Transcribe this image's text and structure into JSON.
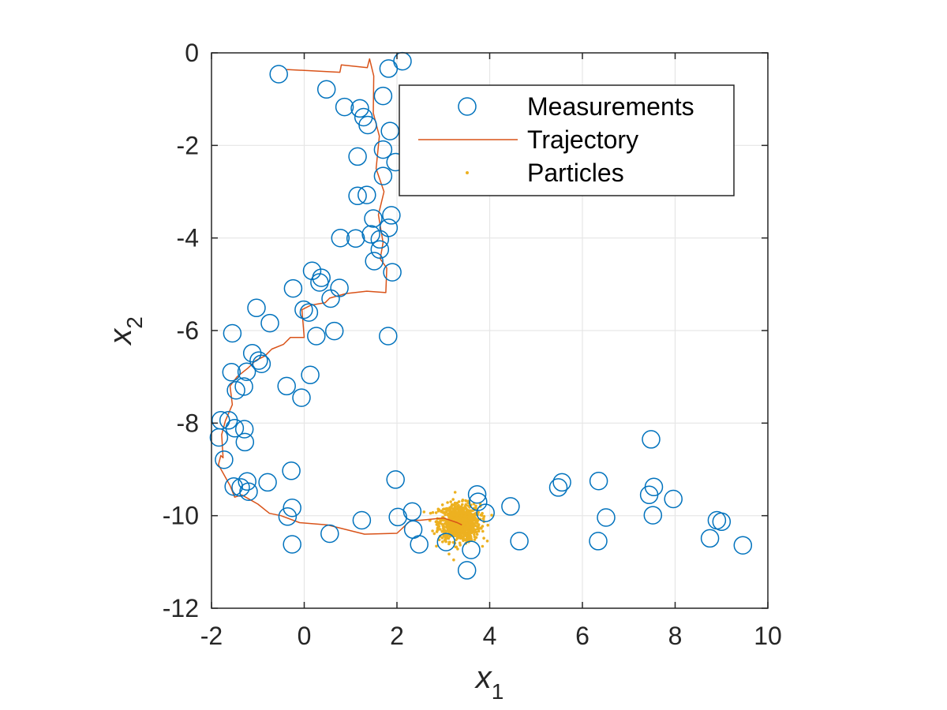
{
  "chart_data": {
    "type": "scatter",
    "xlabel": "x",
    "xlabel_sub": "1",
    "ylabel": "x",
    "ylabel_sub": "2",
    "xlim": [
      -2,
      10
    ],
    "ylim": [
      -12,
      0
    ],
    "xticks": [
      -2,
      0,
      2,
      4,
      6,
      8,
      10
    ],
    "yticks": [
      0,
      -2,
      -4,
      -6,
      -8,
      -10,
      -12
    ],
    "xtick_labels": [
      "-2",
      "0",
      "2",
      "4",
      "6",
      "8",
      "10"
    ],
    "ytick_labels": [
      "0",
      "-2",
      "-4",
      "-6",
      "-8",
      "-10",
      "-12"
    ],
    "grid": true,
    "legend_position": "top-right",
    "colors": {
      "measurements": "#0072BD",
      "trajectory": "#D95319",
      "particles": "#EDB120",
      "grid": "#E6E6E6",
      "axes": "#262626"
    },
    "series": [
      {
        "name": "Measurements",
        "type": "scatter",
        "marker": "circle",
        "points": [
          [
            -0.55,
            -0.46
          ],
          [
            0.48,
            -0.79
          ],
          [
            1.82,
            -0.34
          ],
          [
            2.12,
            -0.18
          ],
          [
            0.87,
            -1.17
          ],
          [
            1.2,
            -1.2
          ],
          [
            1.7,
            -0.93
          ],
          [
            1.28,
            -1.39
          ],
          [
            1.37,
            -1.56
          ],
          [
            1.85,
            -1.69
          ],
          [
            1.7,
            -2.09
          ],
          [
            1.15,
            -2.24
          ],
          [
            1.97,
            -2.36
          ],
          [
            1.7,
            -2.66
          ],
          [
            1.15,
            -3.09
          ],
          [
            1.35,
            -3.07
          ],
          [
            1.88,
            -3.51
          ],
          [
            1.49,
            -3.58
          ],
          [
            1.82,
            -3.78
          ],
          [
            0.78,
            -4.0
          ],
          [
            1.11,
            -4.01
          ],
          [
            1.44,
            -3.92
          ],
          [
            1.63,
            -4.03
          ],
          [
            1.63,
            -4.25
          ],
          [
            1.51,
            -4.5
          ],
          [
            1.9,
            -4.74
          ],
          [
            0.17,
            -4.71
          ],
          [
            0.37,
            -4.86
          ],
          [
            0.33,
            -4.96
          ],
          [
            0.76,
            -5.08
          ],
          [
            -0.24,
            -5.09
          ],
          [
            0.57,
            -5.31
          ],
          [
            -1.03,
            -5.51
          ],
          [
            -0.01,
            -5.55
          ],
          [
            0.1,
            -5.61
          ],
          [
            -0.74,
            -5.84
          ],
          [
            1.81,
            -6.12
          ],
          [
            -1.55,
            -6.06
          ],
          [
            0.26,
            -6.12
          ],
          [
            0.65,
            -6.01
          ],
          [
            -1.12,
            -6.49
          ],
          [
            -0.98,
            -6.65
          ],
          [
            -0.92,
            -6.72
          ],
          [
            -1.57,
            -6.9
          ],
          [
            -1.24,
            -6.89
          ],
          [
            0.13,
            -6.96
          ],
          [
            -0.38,
            -7.2
          ],
          [
            -1.3,
            -7.21
          ],
          [
            -1.47,
            -7.29
          ],
          [
            -0.06,
            -7.45
          ],
          [
            -1.8,
            -7.94
          ],
          [
            -1.63,
            -7.94
          ],
          [
            -1.5,
            -8.11
          ],
          [
            -1.29,
            -8.13
          ],
          [
            -1.28,
            -8.41
          ],
          [
            -1.84,
            -8.31
          ],
          [
            -1.73,
            -8.79
          ],
          [
            -0.28,
            -9.03
          ],
          [
            -1.52,
            -9.37
          ],
          [
            -1.37,
            -9.39
          ],
          [
            -1.23,
            -9.26
          ],
          [
            -1.2,
            -9.48
          ],
          [
            -0.79,
            -9.28
          ],
          [
            -0.26,
            -9.83
          ],
          [
            -0.36,
            -10.02
          ],
          [
            -0.26,
            -10.62
          ],
          [
            0.55,
            -10.39
          ],
          [
            1.24,
            -10.1
          ],
          [
            1.97,
            -9.22
          ],
          [
            2.02,
            -10.03
          ],
          [
            2.33,
            -9.91
          ],
          [
            2.35,
            -10.3
          ],
          [
            2.48,
            -10.62
          ],
          [
            3.06,
            -10.57
          ],
          [
            3.73,
            -9.54
          ],
          [
            3.75,
            -9.7
          ],
          [
            3.91,
            -9.94
          ],
          [
            3.6,
            -10.74
          ],
          [
            3.51,
            -11.18
          ],
          [
            4.45,
            -9.8
          ],
          [
            4.64,
            -10.55
          ],
          [
            5.48,
            -9.39
          ],
          [
            5.56,
            -9.28
          ],
          [
            6.35,
            -9.25
          ],
          [
            6.51,
            -10.04
          ],
          [
            6.34,
            -10.55
          ],
          [
            7.48,
            -8.35
          ],
          [
            7.44,
            -9.55
          ],
          [
            7.54,
            -9.38
          ],
          [
            7.52,
            -9.99
          ],
          [
            7.96,
            -9.64
          ],
          [
            8.9,
            -10.1
          ],
          [
            9.0,
            -10.13
          ],
          [
            8.75,
            -10.49
          ],
          [
            9.46,
            -10.64
          ]
        ]
      },
      {
        "name": "Trajectory",
        "type": "line",
        "points": [
          [
            -0.38,
            -0.36
          ],
          [
            0.77,
            -0.42
          ],
          [
            0.8,
            -0.26
          ],
          [
            1.36,
            -0.32
          ],
          [
            1.41,
            -0.13
          ],
          [
            1.5,
            -0.5
          ],
          [
            1.49,
            -1.3
          ],
          [
            1.62,
            -1.8
          ],
          [
            1.55,
            -2.5
          ],
          [
            1.72,
            -3.0
          ],
          [
            1.6,
            -3.5
          ],
          [
            1.7,
            -4.1
          ],
          [
            1.64,
            -4.45
          ],
          [
            1.78,
            -4.65
          ],
          [
            1.76,
            -5.18
          ],
          [
            1.35,
            -5.15
          ],
          [
            0.9,
            -5.2
          ],
          [
            0.55,
            -5.3
          ],
          [
            0.45,
            -5.4
          ],
          [
            0.15,
            -5.45
          ],
          [
            -0.05,
            -5.55
          ],
          [
            0.0,
            -6.15
          ],
          [
            -0.3,
            -6.15
          ],
          [
            -0.45,
            -6.3
          ],
          [
            -0.7,
            -6.4
          ],
          [
            -0.85,
            -6.55
          ],
          [
            -1.05,
            -6.65
          ],
          [
            -1.2,
            -6.8
          ],
          [
            -1.45,
            -7.0
          ],
          [
            -1.6,
            -7.2
          ],
          [
            -1.55,
            -7.6
          ],
          [
            -1.7,
            -7.95
          ],
          [
            -1.78,
            -8.25
          ],
          [
            -1.75,
            -8.75
          ],
          [
            -1.8,
            -8.7
          ],
          [
            -1.85,
            -8.9
          ],
          [
            -1.6,
            -9.35
          ],
          [
            -1.5,
            -9.6
          ],
          [
            -1.35,
            -9.55
          ],
          [
            -1.0,
            -9.75
          ],
          [
            -0.75,
            -9.95
          ],
          [
            -0.5,
            -10.0
          ],
          [
            -0.1,
            -10.15
          ],
          [
            0.5,
            -10.2
          ],
          [
            1.3,
            -10.4
          ],
          [
            2.0,
            -10.38
          ],
          [
            2.3,
            -10.1
          ],
          [
            2.5,
            -10.1
          ],
          [
            3.0,
            -10.05
          ],
          [
            3.3,
            -10.15
          ],
          [
            3.4,
            -10.2
          ]
        ]
      },
      {
        "name": "Particles",
        "type": "scatter",
        "marker": "dot",
        "cloud": {
          "center": [
            3.35,
            -10.15
          ],
          "spread": [
            0.22,
            0.2
          ],
          "count": 900
        }
      }
    ]
  }
}
